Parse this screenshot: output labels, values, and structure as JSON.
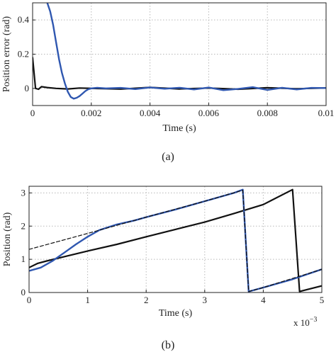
{
  "chart_data": [
    {
      "type": "line",
      "panel": "a",
      "caption": "(a)",
      "xlabel": "Time (s)",
      "ylabel": "Position error (rad)",
      "xlim": [
        0,
        0.01
      ],
      "ylim": [
        -0.1,
        0.5
      ],
      "xticks": [
        0,
        0.002,
        0.004,
        0.006,
        0.008,
        0.01
      ],
      "xtick_labels": [
        "0",
        "0.002",
        "0.004",
        "0.006",
        "0.008",
        "0.01"
      ],
      "yticks": [
        0,
        0.2,
        0.4
      ],
      "ytick_labels": [
        "0",
        "0.2",
        "0.4"
      ],
      "grid": true,
      "series": [
        {
          "color": "#111111",
          "width": 2.2,
          "x": [
            0,
            0.0001,
            0.0002,
            0.0003,
            0.0005,
            0.0008,
            0.0012,
            0.0016,
            0.002,
            0.003,
            0.004,
            0.005,
            0.006,
            0.007,
            0.008,
            0.009,
            0.01
          ],
          "y": [
            0.18,
            0.0,
            -0.005,
            0.01,
            0.005,
            0.0,
            -0.003,
            0.002,
            0.0,
            -0.004,
            0.006,
            -0.003,
            0.002,
            -0.005,
            0.004,
            -0.002,
            0.003
          ]
        },
        {
          "color": "#2f57b0",
          "width": 2.4,
          "x": [
            0.0005,
            0.0006,
            0.0007,
            0.0008,
            0.0009,
            0.001,
            0.0011,
            0.0012,
            0.0013,
            0.0014,
            0.0015,
            0.0016,
            0.0017,
            0.0018,
            0.0019,
            0.002,
            0.0022,
            0.0025,
            0.003,
            0.0035,
            0.004,
            0.0045,
            0.005,
            0.0055,
            0.006,
            0.0065,
            0.007,
            0.0075,
            0.008,
            0.0085,
            0.009,
            0.0095,
            0.01
          ],
          "y": [
            0.5,
            0.45,
            0.37,
            0.27,
            0.17,
            0.09,
            0.03,
            -0.02,
            -0.05,
            -0.06,
            -0.055,
            -0.045,
            -0.03,
            -0.015,
            -0.005,
            0.0,
            0.004,
            0.0,
            0.003,
            -0.004,
            0.006,
            -0.002,
            0.004,
            -0.006,
            0.005,
            -0.01,
            -0.003,
            0.007,
            -0.009,
            0.004,
            -0.006,
            0.003,
            0.002
          ]
        }
      ]
    },
    {
      "type": "line",
      "panel": "b",
      "caption": "(b)",
      "xlabel": "Time (s)",
      "ylabel": "Position (rad)",
      "x_multiplier": "x 10",
      "x_multiplier_exp": "−3",
      "xlim": [
        0,
        5
      ],
      "ylim": [
        0,
        3.2
      ],
      "xticks": [
        0,
        1,
        2,
        3,
        4,
        5
      ],
      "xtick_labels": [
        "0",
        "1",
        "2",
        "3",
        "4",
        "5"
      ],
      "yticks": [
        0,
        1,
        2,
        3
      ],
      "ytick_labels": [
        "0",
        "1",
        "2",
        "3"
      ],
      "grid": true,
      "series": [
        {
          "color": "#111111",
          "width": 2.2,
          "x": [
            0,
            0.15,
            0.3,
            0.6,
            1.0,
            1.5,
            2.0,
            2.5,
            3.0,
            3.5,
            4.0,
            4.5,
            4.62,
            5.0
          ],
          "y": [
            0.75,
            0.88,
            0.95,
            1.08,
            1.25,
            1.45,
            1.68,
            1.9,
            2.12,
            2.38,
            2.65,
            3.1,
            0.03,
            0.2
          ]
        },
        {
          "color": "#2f57b0",
          "width": 2.4,
          "x": [
            0,
            0.2,
            0.4,
            0.6,
            0.8,
            1.0,
            1.2,
            1.5,
            1.8,
            2.0,
            2.5,
            3.0,
            3.5,
            3.65,
            3.75,
            4.0,
            4.5,
            5.0
          ],
          "y": [
            0.65,
            0.75,
            0.95,
            1.2,
            1.45,
            1.68,
            1.88,
            2.05,
            2.17,
            2.27,
            2.5,
            2.75,
            3.0,
            3.1,
            0.03,
            0.15,
            0.4,
            0.7
          ]
        },
        {
          "color": "#111111",
          "width": 1.2,
          "dash": "5 3",
          "x": [
            0,
            1.0,
            2.0,
            3.0,
            3.65,
            3.75,
            4.0,
            5.0
          ],
          "y": [
            1.3,
            1.78,
            2.27,
            2.75,
            3.08,
            0.03,
            0.15,
            0.7
          ]
        }
      ]
    }
  ]
}
